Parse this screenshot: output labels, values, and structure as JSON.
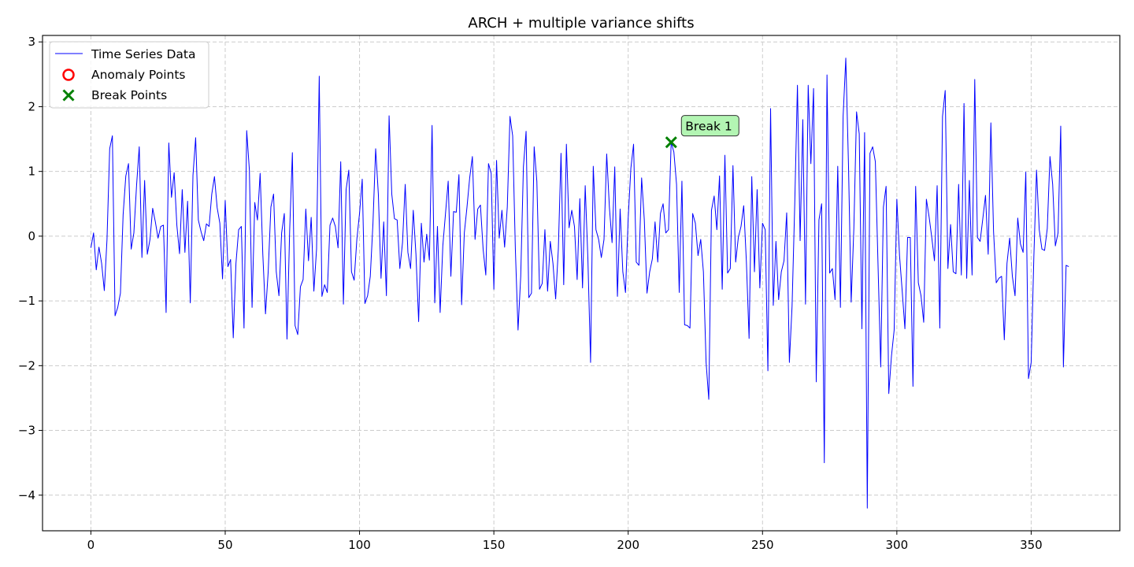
{
  "chart_data": {
    "type": "line",
    "title": "ARCH + multiple variance shifts",
    "xlabel": "",
    "ylabel": "",
    "xlim": [
      -18,
      383
    ],
    "ylim": [
      -4.55,
      3.1
    ],
    "x_ticks": [
      0,
      50,
      100,
      150,
      200,
      250,
      300,
      350
    ],
    "y_ticks": [
      3,
      2,
      1,
      0,
      -1,
      -2,
      -3,
      -4
    ],
    "y_tick_labels": [
      "3",
      "2",
      "1",
      "0",
      "−1",
      "−2",
      "−3",
      "−4"
    ],
    "grid": true,
    "legend_position": "top-left",
    "series": [
      {
        "name": "Time Series Data",
        "color": "#0000ff",
        "x_start": 0,
        "values": [
          -0.18,
          0.05,
          -0.52,
          -0.17,
          -0.42,
          -0.84,
          -0.05,
          1.35,
          1.55,
          -1.23,
          -1.1,
          -0.88,
          0.33,
          0.93,
          1.12,
          -0.2,
          0.05,
          0.78,
          1.38,
          -0.33,
          0.86,
          -0.28,
          -0.05,
          0.43,
          0.22,
          -0.03,
          0.15,
          0.17,
          -1.18,
          1.44,
          0.6,
          0.98,
          0.17,
          -0.27,
          0.72,
          -0.25,
          0.54,
          -1.03,
          0.94,
          1.52,
          0.25,
          0.07,
          -0.07,
          0.19,
          0.15,
          0.65,
          0.92,
          0.44,
          0.2,
          -0.66,
          0.55,
          -0.47,
          -0.36,
          -1.57,
          -0.42,
          0.1,
          0.15,
          -1.42,
          1.63,
          1.02,
          -1.1,
          0.52,
          0.25,
          0.97,
          -0.28,
          -1.2,
          -0.55,
          0.45,
          0.65,
          -0.55,
          -0.92,
          0.05,
          0.35,
          -1.59,
          0.1,
          1.29,
          -1.38,
          -1.52,
          -0.78,
          -0.67,
          0.42,
          -0.38,
          0.29,
          -0.85,
          -0.2,
          2.47,
          -0.93,
          -0.75,
          -0.87,
          0.17,
          0.28,
          0.15,
          -0.18,
          1.15,
          -1.05,
          0.72,
          1.02,
          -0.55,
          -0.68,
          -0.05,
          0.35,
          0.88,
          -1.04,
          -0.92,
          -0.62,
          0.2,
          1.35,
          0.65,
          -0.65,
          0.22,
          -0.92,
          1.86,
          0.65,
          0.27,
          0.25,
          -0.5,
          -0.1,
          0.8,
          -0.25,
          -0.5,
          0.4,
          -0.28,
          -1.32,
          0.2,
          -0.4,
          0.03,
          -0.37,
          1.71,
          -1.03,
          0.15,
          -1.18,
          -0.15,
          0.35,
          0.85,
          -0.62,
          0.38,
          0.37,
          0.95,
          -1.06,
          0.05,
          0.45,
          0.9,
          1.23,
          -0.05,
          0.42,
          0.48,
          -0.2,
          -0.6,
          1.12,
          0.97,
          -0.82,
          1.17,
          -0.03,
          0.4,
          -0.17,
          0.45,
          1.85,
          1.55,
          -0.2,
          -1.45,
          -0.62,
          1.07,
          1.62,
          -0.95,
          -0.88,
          1.38,
          0.85,
          -0.82,
          -0.73,
          0.1,
          -0.85,
          -0.08,
          -0.42,
          -0.97,
          -0.2,
          1.28,
          -0.75,
          1.42,
          0.13,
          0.4,
          0.15,
          -0.67,
          0.58,
          -0.8,
          0.78,
          -0.35,
          -1.95,
          1.08,
          0.1,
          -0.05,
          -0.33,
          -0.05,
          1.27,
          0.45,
          -0.1,
          1.07,
          -0.93,
          0.42,
          -0.55,
          -0.87,
          0.28,
          1.05,
          1.42,
          -0.4,
          -0.45,
          0.9,
          0.25,
          -0.88,
          -0.55,
          -0.35,
          0.22,
          -0.4,
          0.35,
          0.5,
          0.05,
          0.1,
          1.45,
          1.3,
          0.8,
          -0.87,
          0.85,
          -1.37,
          -1.38,
          -1.42,
          0.35,
          0.2,
          -0.3,
          -0.05,
          -0.55,
          -1.95,
          -2.52,
          0.4,
          0.62,
          0.1,
          0.93,
          -0.82,
          1.25,
          -0.57,
          -0.5,
          1.09,
          -0.4,
          -0.02,
          0.15,
          0.47,
          -0.4,
          -1.58,
          0.92,
          -0.55,
          0.72,
          -0.8,
          0.2,
          0.1,
          -2.08,
          1.97,
          -1.07,
          -0.08,
          -0.98,
          -0.55,
          -0.38,
          0.36,
          -1.95,
          -1.08,
          0.5,
          2.33,
          -0.07,
          1.8,
          -1.05,
          2.33,
          1.12,
          2.28,
          -2.25,
          0.25,
          0.5,
          -3.5,
          2.49,
          -0.57,
          -0.5,
          -0.98,
          1.08,
          -1.1,
          1.85,
          2.75,
          1.1,
          -1.02,
          0.12,
          1.92,
          1.58,
          -1.43,
          1.6,
          -4.2,
          1.28,
          1.38,
          1.15,
          -0.45,
          -2.02,
          0.45,
          0.77,
          -2.43,
          -1.85,
          -1.45,
          0.57,
          -0.3,
          -0.85,
          -1.43,
          -0.02,
          -0.02,
          -2.32,
          0.77,
          -0.72,
          -0.92,
          -1.33,
          0.57,
          0.3,
          -0.02,
          -0.38,
          0.78,
          -1.42,
          1.85,
          2.25,
          -0.5,
          0.18,
          -0.55,
          -0.58,
          0.8,
          -0.6,
          2.05,
          -0.65,
          0.86,
          -0.6,
          2.42,
          -0.02,
          -0.08,
          0.27,
          0.63,
          -0.28,
          1.75,
          0.07,
          -0.72,
          -0.65,
          -0.62,
          -1.6,
          -0.42,
          -0.03,
          -0.62,
          -0.92,
          0.28,
          -0.12,
          -0.25,
          0.99,
          -2.2,
          -1.95,
          -0.32,
          1.02,
          0.1,
          -0.2,
          -0.22,
          0.12,
          1.23,
          0.8,
          -0.15,
          0.05,
          1.7,
          -2.02,
          -0.45,
          -0.47
        ]
      }
    ],
    "anomaly_points": {
      "name": "Anomaly Points",
      "color": "#ff0000",
      "points": []
    },
    "break_points": {
      "name": "Break Points",
      "color": "#008000",
      "points": [
        {
          "x": 216,
          "y": 1.45,
          "label": "Break 1",
          "label_bg": "#b3f5b3"
        }
      ]
    }
  }
}
